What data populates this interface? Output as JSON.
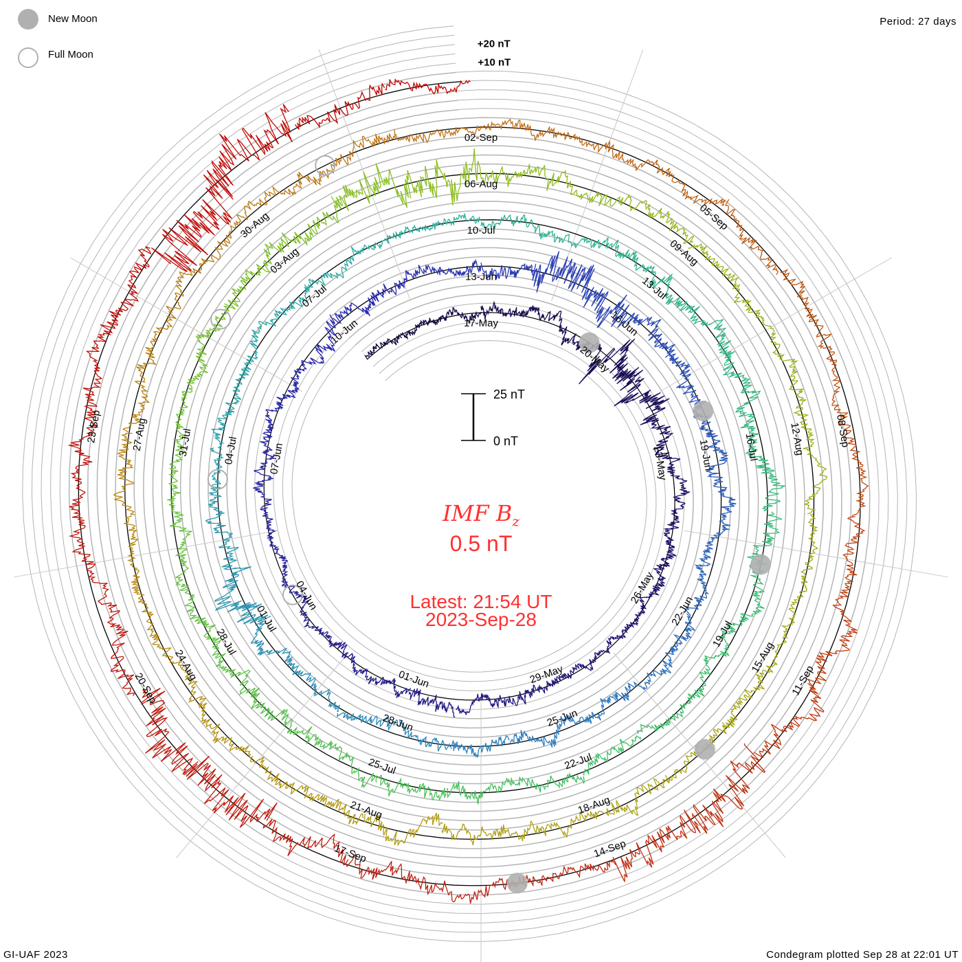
{
  "header": {
    "period_label": "Period: 27 days",
    "legend": [
      {
        "label": "New Moon",
        "icon": "new-moon-filled-circle",
        "color": "#b0b0b0"
      },
      {
        "label": "Full Moon",
        "icon": "full-moon-hollow-circle",
        "color": "#b0b0b0"
      }
    ]
  },
  "footer": {
    "credit": "GI-UAF 2023",
    "plotted": "Condegram plotted Sep 28 at 22:01 UT"
  },
  "center": {
    "title_main": "IMF B",
    "title_sub": "z",
    "value": "0.5 nT",
    "latest_line1": "Latest: 21:54 UT",
    "latest_line2": "2023-Sep-28",
    "scale_top": "25 nT",
    "scale_bottom": "0 nT",
    "text_color": "#ff3030"
  },
  "chart_data": {
    "type": "line",
    "subtype": "spiral-condegram",
    "title": "IMF Bz",
    "period_days": 27,
    "start_date": "2023-05-14",
    "end": "2023-09-28 21:54 UT",
    "start_offset_days": -3,
    "end_offset_days": 134.9,
    "reference_day": "17-May",
    "scale_nT": 25,
    "grid_step_nT": 5,
    "outer_axis_labels": [
      "+10 nT",
      "+20 nT"
    ],
    "daily_amplitude_nT": [
      3,
      3,
      3,
      4,
      4,
      5,
      10,
      8,
      5,
      4,
      4,
      4,
      3,
      3,
      3,
      4,
      4,
      5,
      4,
      4,
      3,
      3,
      3,
      4,
      4,
      4,
      5,
      5,
      4,
      4,
      5,
      9,
      8,
      6,
      6,
      5,
      5,
      4,
      4,
      5,
      4,
      4,
      5,
      5,
      4,
      4,
      4,
      5,
      8,
      7,
      5,
      5,
      4,
      4,
      4,
      3,
      3,
      4,
      4,
      5,
      5,
      6,
      6,
      7,
      7,
      5,
      5,
      4,
      4,
      4,
      5,
      5,
      5,
      6,
      6,
      5,
      5,
      4,
      4,
      5,
      6,
      7,
      9,
      8,
      6,
      5,
      5,
      4,
      4,
      4,
      4,
      3,
      3,
      4,
      4,
      5,
      5,
      5,
      6,
      6,
      5,
      5,
      4,
      4,
      5,
      5,
      4,
      4,
      5,
      5,
      4,
      4,
      4,
      4,
      5,
      5,
      4,
      4,
      5,
      6,
      7,
      10,
      9,
      5,
      5,
      6,
      7,
      10,
      9,
      6,
      5,
      5,
      5,
      6,
      14,
      12,
      6,
      4
    ],
    "date_labels": [
      "17-May",
      "20-May",
      "23-May",
      "26-May",
      "29-May",
      "01-Jun",
      "04-Jun",
      "07-Jun",
      "10-Jun",
      "13-Jun",
      "16-Jun",
      "19-Jun",
      "22-Jun",
      "25-Jun",
      "28-Jun",
      "01-Jul",
      "04-Jul",
      "07-Jul",
      "10-Jul",
      "13-Jul",
      "16-Jul",
      "19-Jul",
      "22-Jul",
      "25-Jul",
      "28-Jul",
      "31-Jul",
      "03-Aug",
      "06-Aug",
      "09-Aug",
      "12-Aug",
      "15-Aug",
      "18-Aug",
      "21-Aug",
      "24-Aug",
      "27-Aug",
      "30-Aug",
      "02-Sep",
      "05-Sep",
      "08-Sep",
      "11-Sep",
      "14-Sep",
      "17-Sep",
      "20-Sep",
      "23-Sep"
    ],
    "label_step_days": 3,
    "moons": [
      {
        "type": "new",
        "day_offset": 2.66
      },
      {
        "type": "full",
        "day_offset": 18.15
      },
      {
        "type": "new",
        "day_offset": 32.2
      },
      {
        "type": "full",
        "day_offset": 47.5
      },
      {
        "type": "new",
        "day_offset": 61.8
      },
      {
        "type": "full",
        "day_offset": 76.8
      },
      {
        "type": "new",
        "day_offset": 91.4
      },
      {
        "type": "full",
        "day_offset": 106.1
      },
      {
        "type": "new",
        "day_offset": 121.1
      }
    ],
    "color_stops": [
      "#140a3c",
      "#1e1478",
      "#2a2ab0",
      "#2a7ac0",
      "#2ab0a0",
      "#40c060",
      "#8cc020",
      "#b0a010",
      "#c07010",
      "#c02010",
      "#c00000"
    ]
  }
}
